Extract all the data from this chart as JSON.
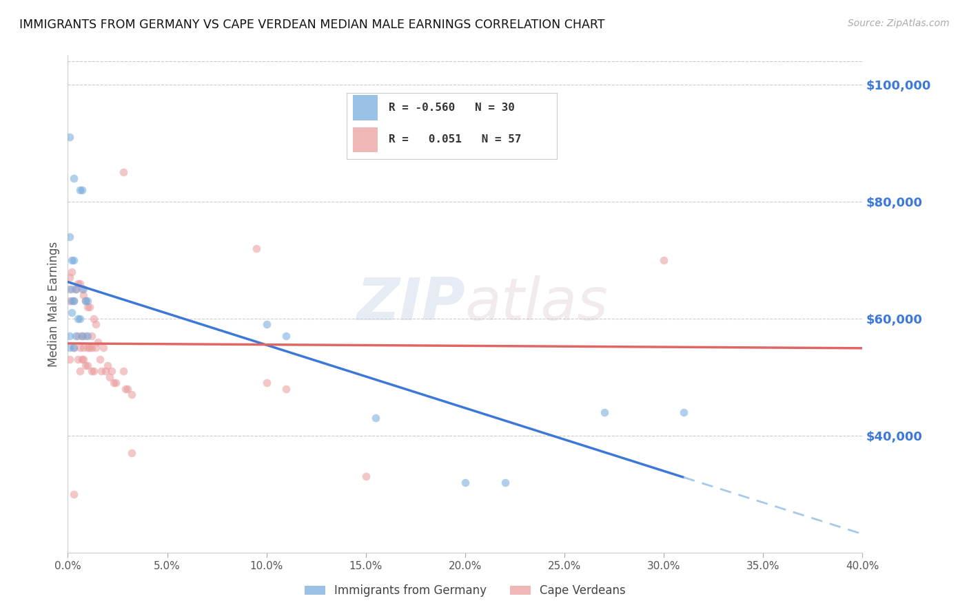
{
  "title": "IMMIGRANTS FROM GERMANY VS CAPE VERDEAN MEDIAN MALE EARNINGS CORRELATION CHART",
  "source": "Source: ZipAtlas.com",
  "ylabel": "Median Male Earnings",
  "right_yticks": [
    40000,
    60000,
    80000,
    100000
  ],
  "right_yticklabels": [
    "$40,000",
    "$60,000",
    "$80,000",
    "$100,000"
  ],
  "legend_entries": [
    {
      "label": "Immigrants from Germany",
      "R": "-0.560",
      "N": "30",
      "color": "#6fa8dc"
    },
    {
      "label": "Cape Verdeans",
      "R": "0.051",
      "N": "57",
      "color": "#ea9999"
    }
  ],
  "germany_scatter": [
    [
      0.001,
      91000
    ],
    [
      0.003,
      84000
    ],
    [
      0.006,
      82000
    ],
    [
      0.007,
      82000
    ],
    [
      0.001,
      74000
    ],
    [
      0.002,
      70000
    ],
    [
      0.003,
      70000
    ],
    [
      0.001,
      65000
    ],
    [
      0.004,
      65000
    ],
    [
      0.008,
      65000
    ],
    [
      0.002,
      63000
    ],
    [
      0.003,
      63000
    ],
    [
      0.009,
      63000
    ],
    [
      0.01,
      63000
    ],
    [
      0.002,
      61000
    ],
    [
      0.005,
      60000
    ],
    [
      0.006,
      60000
    ],
    [
      0.001,
      57000
    ],
    [
      0.004,
      57000
    ],
    [
      0.007,
      57000
    ],
    [
      0.01,
      57000
    ],
    [
      0.001,
      55000
    ],
    [
      0.003,
      55000
    ],
    [
      0.1,
      59000
    ],
    [
      0.11,
      57000
    ],
    [
      0.155,
      43000
    ],
    [
      0.27,
      44000
    ],
    [
      0.31,
      44000
    ],
    [
      0.2,
      32000
    ],
    [
      0.22,
      32000
    ]
  ],
  "capeverde_scatter": [
    [
      0.001,
      67000
    ],
    [
      0.002,
      65000
    ],
    [
      0.004,
      65000
    ],
    [
      0.001,
      63000
    ],
    [
      0.003,
      63000
    ],
    [
      0.002,
      68000
    ],
    [
      0.005,
      66000
    ],
    [
      0.006,
      66000
    ],
    [
      0.007,
      65000
    ],
    [
      0.008,
      64000
    ],
    [
      0.009,
      63000
    ],
    [
      0.01,
      62000
    ],
    [
      0.011,
      62000
    ],
    [
      0.005,
      57000
    ],
    [
      0.007,
      57000
    ],
    [
      0.009,
      57000
    ],
    [
      0.012,
      57000
    ],
    [
      0.013,
      60000
    ],
    [
      0.014,
      59000
    ],
    [
      0.003,
      55000
    ],
    [
      0.006,
      55000
    ],
    [
      0.008,
      55000
    ],
    [
      0.01,
      55000
    ],
    [
      0.011,
      55000
    ],
    [
      0.012,
      55000
    ],
    [
      0.014,
      55000
    ],
    [
      0.001,
      53000
    ],
    [
      0.005,
      53000
    ],
    [
      0.007,
      53000
    ],
    [
      0.008,
      53000
    ],
    [
      0.009,
      52000
    ],
    [
      0.01,
      52000
    ],
    [
      0.012,
      51000
    ],
    [
      0.006,
      51000
    ],
    [
      0.013,
      51000
    ],
    [
      0.015,
      56000
    ],
    [
      0.016,
      53000
    ],
    [
      0.017,
      51000
    ],
    [
      0.018,
      55000
    ],
    [
      0.019,
      51000
    ],
    [
      0.02,
      52000
    ],
    [
      0.021,
      50000
    ],
    [
      0.022,
      51000
    ],
    [
      0.023,
      49000
    ],
    [
      0.024,
      49000
    ],
    [
      0.028,
      85000
    ],
    [
      0.028,
      51000
    ],
    [
      0.029,
      48000
    ],
    [
      0.03,
      48000
    ],
    [
      0.032,
      47000
    ],
    [
      0.032,
      37000
    ],
    [
      0.095,
      72000
    ],
    [
      0.1,
      49000
    ],
    [
      0.11,
      48000
    ],
    [
      0.15,
      33000
    ],
    [
      0.003,
      30000
    ],
    [
      0.3,
      70000
    ]
  ],
  "bg_color": "#ffffff",
  "scatter_alpha": 0.55,
  "scatter_size": 70,
  "germany_color": "#6fa8dc",
  "capeverde_color": "#ea9999",
  "germany_line_color": "#3c78d8",
  "capeverde_line_color": "#e06666",
  "dashed_extend_color": "#a8c8ea",
  "title_color": "#222222",
  "right_axis_color": "#3c78d8",
  "xmin": 0.0,
  "xmax": 0.4,
  "ymin": 20000,
  "ymax": 105000,
  "watermark": "ZIPatlas",
  "watermark_zip": "ZIP",
  "watermark_atlas": "atlas"
}
